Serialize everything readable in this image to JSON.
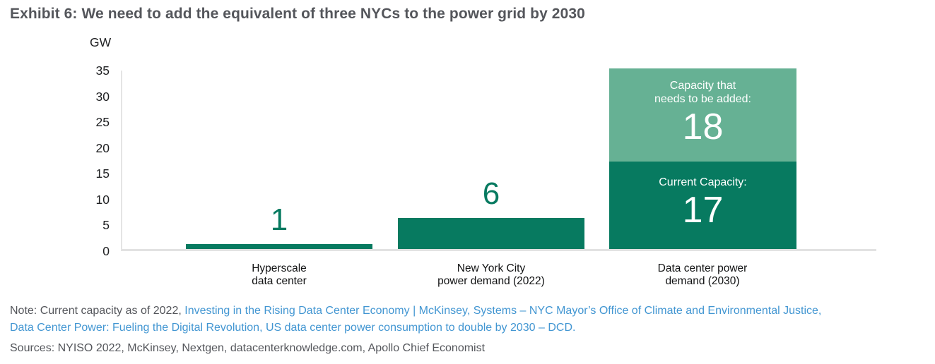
{
  "title": "Exhibit 6: We need to add the equivalent of three NYCs to the power grid by 2030",
  "chart_data": {
    "type": "bar",
    "title": "Exhibit 6: We need to add the equivalent of three NYCs to the power grid by 2030",
    "unit_label": "GW",
    "ylabel": "GW",
    "xlabel": "",
    "ylim": [
      0,
      35
    ],
    "yticks": [
      35,
      30,
      25,
      20,
      15,
      10,
      5,
      0
    ],
    "grid": false,
    "legend_position": "none",
    "categories": [
      "Hyperscale data center",
      "New York City power demand (2022)",
      "Data center power demand (2030)"
    ],
    "bars": [
      {
        "category_lines": [
          "Hyperscale",
          "data center"
        ],
        "value": 1,
        "value_label": "1"
      },
      {
        "category_lines": [
          "New York City",
          "power demand (2022)"
        ],
        "value": 6,
        "value_label": "6"
      },
      {
        "category_lines": [
          "Data center power",
          "demand (2030)"
        ],
        "value": 35,
        "segments": [
          {
            "label": "Current Capacity:",
            "value": 17,
            "value_label": "17"
          },
          {
            "label_lines": [
              "Capacity that",
              "needs to be added:"
            ],
            "value": 18,
            "value_label": "18"
          }
        ]
      }
    ],
    "colors": {
      "bar_green": "#077a60",
      "added_segment_green": "#66b194",
      "axis_line": "#e2e2e2"
    }
  },
  "note": {
    "lines": [
      [
        {
          "kind": "text",
          "text": "Note: Current capacity as of 2022, "
        },
        {
          "kind": "link",
          "text": "Investing in the Rising Data Center Economy | McKinsey"
        },
        {
          "kind": "link",
          "text": ", "
        },
        {
          "kind": "link",
          "text": "Systems – NYC Mayor’s Office of Climate and Environmental Justice,"
        }
      ],
      [
        {
          "kind": "link",
          "text": "Data Center Power: Fueling the Digital Revolution"
        },
        {
          "kind": "link",
          "text": ", "
        },
        {
          "kind": "link",
          "text": "US data center power consumption to double by 2030 – DCD."
        }
      ]
    ]
  },
  "sources": "Sources: NYISO 2022, McKinsey, Nextgen, datacenterknowledge.com, Apollo Chief Economist",
  "colors": {
    "title_gray": "#54565b",
    "link_blue": "#4296d2",
    "text_dark": "#1f2022"
  }
}
